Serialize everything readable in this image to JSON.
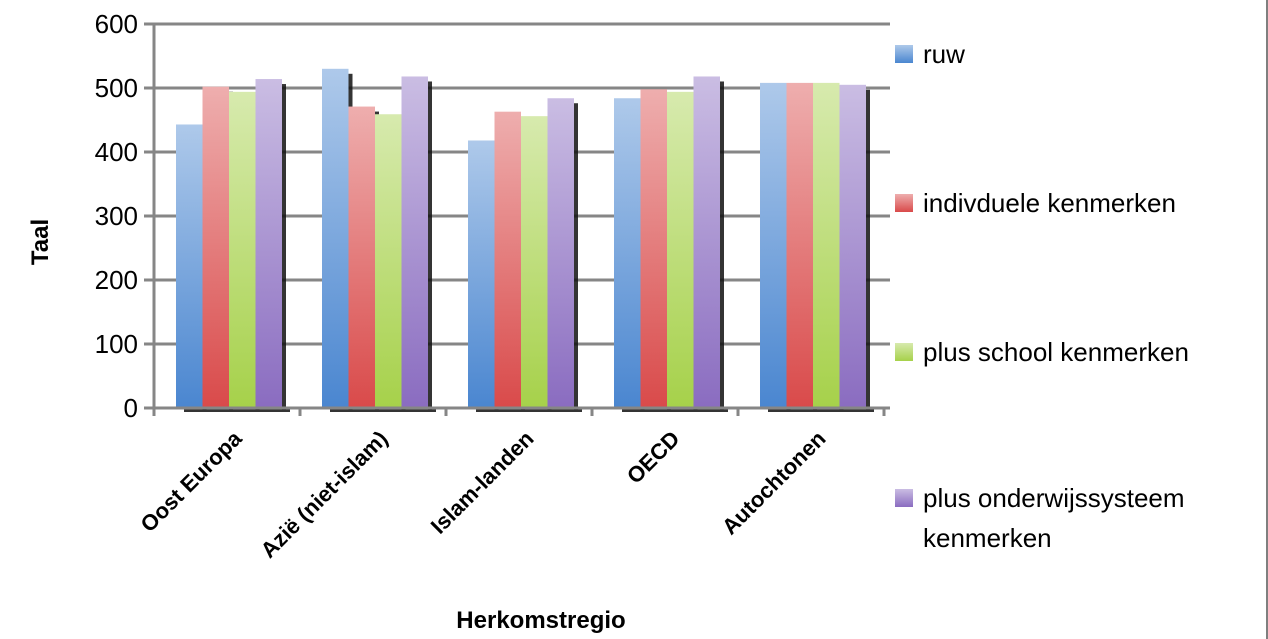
{
  "chart_data": {
    "type": "bar",
    "categories": [
      "Oost Europa",
      "Azië (niet-islam)",
      "Islam-landen",
      "OECD",
      "Autochtonen"
    ],
    "series": [
      {
        "name": "ruw",
        "values": [
          443,
          530,
          418,
          484,
          508
        ],
        "color": "#4a86d0"
      },
      {
        "name": "indivduele kenmerken",
        "values": [
          502,
          471,
          463,
          498,
          508
        ],
        "color": "#d94a4a"
      },
      {
        "name": "plus school kenmerken",
        "values": [
          494,
          459,
          456,
          494,
          508
        ],
        "color": "#a6d14a"
      },
      {
        "name": "plus onderwijssysteem kenmerken",
        "values": [
          514,
          518,
          484,
          518,
          505
        ],
        "color": "#8a6cc0"
      }
    ],
    "legend_lines": [
      [
        "ruw"
      ],
      [
        "indivduele kenmerken"
      ],
      [
        "plus school kenmerken"
      ],
      [
        "plus onderwijssysteem",
        "kenmerken"
      ]
    ],
    "title": "",
    "xlabel": "Herkomstregio",
    "ylabel": "Taal",
    "ylim": [
      0,
      600
    ],
    "yticks": [
      0,
      100,
      200,
      300,
      400,
      500,
      600
    ],
    "grid": true,
    "legend_position": "right"
  }
}
